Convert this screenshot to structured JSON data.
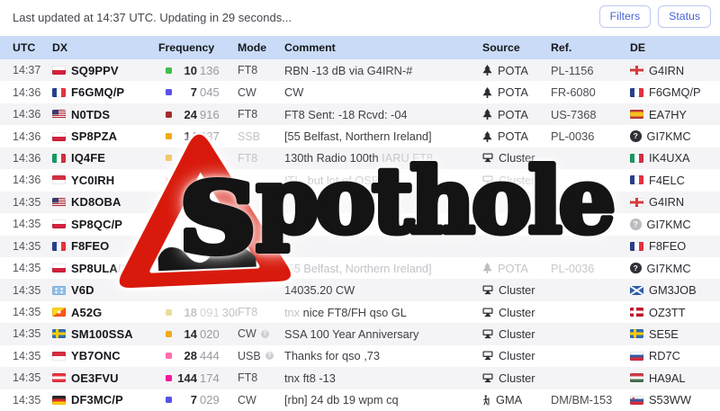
{
  "topbar": {
    "status_text": "Last updated at 14:37 UTC. Updating in 29 seconds...",
    "filters_label": "Filters",
    "status_label": "Status"
  },
  "table": {
    "columns": [
      "UTC",
      "DX",
      "Frequency",
      "Mode",
      "Comment",
      "Source",
      "Ref.",
      "DE"
    ],
    "rows": [
      {
        "utc": "14:37",
        "dx": {
          "flag": "pl",
          "call": "SQ9PPV",
          "suffix": "",
          "suffix_muted": false
        },
        "freq": {
          "band": "#3fbf4a",
          "mhz": "10",
          "khz": "136",
          "extra": "",
          "muted": false
        },
        "mode": {
          "label": "FT8",
          "muted": false,
          "badge": false
        },
        "comment": {
          "pre": "",
          "text": "RBN -13 dB via G4IRN-#",
          "tail": ""
        },
        "source": {
          "icon": "pota-tree",
          "label": "POTA",
          "muted": false
        },
        "ref": {
          "text": "PL-1156",
          "muted": false
        },
        "de": {
          "flag": "gb-eng",
          "call": "G4IRN"
        }
      },
      {
        "utc": "14:36",
        "dx": {
          "flag": "fr",
          "call": "F6GMQ/P",
          "suffix": "",
          "suffix_muted": false
        },
        "freq": {
          "band": "#5a52e8",
          "mhz": "7",
          "khz": "045",
          "extra": "",
          "muted": false
        },
        "mode": {
          "label": "CW",
          "muted": false,
          "badge": false
        },
        "comment": {
          "pre": "",
          "text": "CW",
          "tail": ""
        },
        "source": {
          "icon": "pota-tree",
          "label": "POTA",
          "muted": false
        },
        "ref": {
          "text": "FR-6080",
          "muted": false
        },
        "de": {
          "flag": "fr",
          "call": "F6GMQ/P"
        }
      },
      {
        "utc": "14:36",
        "dx": {
          "flag": "us",
          "call": "N0TDS",
          "suffix": "",
          "suffix_muted": false
        },
        "freq": {
          "band": "#a62c2c",
          "mhz": "24",
          "khz": "916",
          "extra": "",
          "muted": false
        },
        "mode": {
          "label": "FT8",
          "muted": false,
          "badge": false
        },
        "comment": {
          "pre": "",
          "text": "FT8 Sent: -18 Rcvd: -04",
          "tail": ""
        },
        "source": {
          "icon": "pota-tree",
          "label": "POTA",
          "muted": false
        },
        "ref": {
          "text": "US-7368",
          "muted": false
        },
        "de": {
          "flag": "es",
          "call": "EA7HY"
        }
      },
      {
        "utc": "14:36",
        "dx": {
          "flag": "pl",
          "call": "SP8PZA",
          "suffix": "",
          "suffix_muted": false
        },
        "freq": {
          "band": "#f0ab18",
          "mhz": "14",
          "khz": "337",
          "extra": "",
          "muted": false
        },
        "mode": {
          "label": "SSB",
          "muted": true,
          "badge": false
        },
        "comment": {
          "pre": "",
          "text": "[55 Belfast, Northern Ireland]",
          "tail": ""
        },
        "source": {
          "icon": "pota-tree",
          "label": "POTA",
          "muted": false
        },
        "ref": {
          "text": "PL-0036",
          "muted": false
        },
        "de": {
          "flag": "q",
          "call": "GI7KMC"
        }
      },
      {
        "utc": "14:36",
        "dx": {
          "flag": "it",
          "call": "IQ4FE",
          "suffix": "",
          "suffix_muted": false
        },
        "freq": {
          "band": "#edc25a",
          "mhz": "14",
          "khz": "",
          "extra": "",
          "muted": true
        },
        "mode": {
          "label": "FT8",
          "muted": true,
          "badge": false
        },
        "comment": {
          "pre": "",
          "text": "130th Radio 100th",
          "tail": " IARU FT8"
        },
        "source": {
          "icon": "cluster-monitor",
          "label": "Cluster",
          "muted": false
        },
        "ref": {
          "text": "",
          "muted": false
        },
        "de": {
          "flag": "it",
          "call": "IK4UXA"
        }
      },
      {
        "utc": "14:36",
        "dx": {
          "flag": "id",
          "call": "YC0IRH",
          "suffix": "",
          "suffix_muted": false
        },
        "freq": {
          "band": "#f2c3c6",
          "mhz": "",
          "khz": "",
          "extra": "",
          "muted": true
        },
        "mode": {
          "label": "",
          "muted": true,
          "badge": false
        },
        "comment": {
          "pre": "ITL, but lot of QSB...",
          "text": "",
          "tail": ""
        },
        "source": {
          "icon": "cluster-monitor",
          "label": "Cluster",
          "muted": true
        },
        "ref": {
          "text": "",
          "muted": false
        },
        "de": {
          "flag": "fr",
          "call": "F4ELC"
        }
      },
      {
        "utc": "14:35",
        "dx": {
          "flag": "us",
          "call": "KD8OBA",
          "suffix": "",
          "suffix_muted": false
        },
        "freq": {
          "band": "",
          "mhz": "",
          "khz": "",
          "extra": "",
          "muted": false
        },
        "mode": {
          "label": "",
          "muted": false,
          "badge": false
        },
        "comment": {
          "pre": "",
          "text": "",
          "tail": ""
        },
        "source": {
          "icon": "",
          "label": "",
          "muted": false
        },
        "ref": {
          "text": "",
          "muted": false
        },
        "de": {
          "flag": "gb-eng",
          "call": "G4IRN"
        }
      },
      {
        "utc": "14:35",
        "dx": {
          "flag": "pl",
          "call": "SP8QC/P",
          "suffix": "",
          "suffix_muted": false
        },
        "freq": {
          "band": "",
          "mhz": "",
          "khz": "",
          "extra": "",
          "muted": false
        },
        "mode": {
          "label": "",
          "muted": false,
          "badge": false
        },
        "comment": {
          "pre": "",
          "text": "",
          "tail": ""
        },
        "source": {
          "icon": "",
          "label": "",
          "muted": false
        },
        "ref": {
          "text": "",
          "muted": false
        },
        "de": {
          "flag": "q-gray",
          "call": "GI7KMC"
        }
      },
      {
        "utc": "14:35",
        "dx": {
          "flag": "fr",
          "call": "F8FEO",
          "suffix": "",
          "suffix_muted": false
        },
        "freq": {
          "band": "",
          "mhz": "",
          "khz": "",
          "extra": "",
          "muted": false
        },
        "mode": {
          "label": "",
          "muted": false,
          "badge": false
        },
        "comment": {
          "pre": "",
          "text": "",
          "tail": ""
        },
        "source": {
          "icon": "",
          "label": "",
          "muted": false
        },
        "ref": {
          "text": "",
          "muted": false
        },
        "de": {
          "flag": "fr",
          "call": "F8FEO"
        }
      },
      {
        "utc": "14:35",
        "dx": {
          "flag": "pl",
          "call": "SP8ULA",
          "suffix": "/P",
          "suffix_muted": true
        },
        "freq": {
          "band": "",
          "mhz": "",
          "khz": "",
          "extra": "",
          "muted": true
        },
        "mode": {
          "label": "",
          "muted": true,
          "badge": false
        },
        "comment": {
          "pre": "[55 Belfast, Northern Ireland]",
          "text": "",
          "tail": ""
        },
        "source": {
          "icon": "pota-tree",
          "label": "POTA",
          "muted": true
        },
        "ref": {
          "text": "PL-0036",
          "muted": true
        },
        "de": {
          "flag": "q",
          "call": "GI7KMC"
        }
      },
      {
        "utc": "14:35",
        "dx": {
          "flag": "fm",
          "call": "V6D",
          "suffix": "",
          "suffix_muted": false
        },
        "freq": {
          "band": "",
          "mhz": "",
          "khz": "",
          "extra": "",
          "muted": false
        },
        "mode": {
          "label": "",
          "muted": false,
          "badge": false
        },
        "comment": {
          "pre": "",
          "text": "14035.20 CW",
          "tail": ""
        },
        "source": {
          "icon": "cluster-monitor",
          "label": "Cluster",
          "muted": false
        },
        "ref": {
          "text": "",
          "muted": false
        },
        "de": {
          "flag": "sct",
          "call": "GM3JOB"
        }
      },
      {
        "utc": "14:35",
        "dx": {
          "flag": "bt",
          "call": "A52G",
          "suffix": "",
          "suffix_muted": false
        },
        "freq": {
          "band": "#e9dc9c",
          "mhz": "18",
          "khz": "091",
          "extra": "300",
          "muted": true
        },
        "mode": {
          "label": "FT8",
          "muted": true,
          "badge": false
        },
        "comment": {
          "pre": "tnx ",
          "text": "nice FT8/FH qso GL",
          "tail": ""
        },
        "source": {
          "icon": "cluster-monitor",
          "label": "Cluster",
          "muted": false
        },
        "ref": {
          "text": "",
          "muted": false
        },
        "de": {
          "flag": "dk",
          "call": "OZ3TT"
        }
      },
      {
        "utc": "14:35",
        "dx": {
          "flag": "se",
          "call": "SM100SSA",
          "suffix": "",
          "suffix_muted": false
        },
        "freq": {
          "band": "#f0ab18",
          "mhz": "14",
          "khz": "020",
          "extra": "",
          "muted": false
        },
        "mode": {
          "label": "CW",
          "muted": false,
          "badge": true
        },
        "comment": {
          "pre": "",
          "text": "SSA 100 Year Anniversary",
          "tail": ""
        },
        "source": {
          "icon": "cluster-monitor",
          "label": "Cluster",
          "muted": false
        },
        "ref": {
          "text": "",
          "muted": false
        },
        "de": {
          "flag": "se",
          "call": "SE5E"
        }
      },
      {
        "utc": "14:35",
        "dx": {
          "flag": "id",
          "call": "YB7ONC",
          "suffix": "",
          "suffix_muted": false
        },
        "freq": {
          "band": "#ff6fae",
          "mhz": "28",
          "khz": "444",
          "extra": "",
          "muted": false
        },
        "mode": {
          "label": "USB",
          "muted": false,
          "badge": true
        },
        "comment": {
          "pre": "",
          "text": "Thanks for qso ,73",
          "tail": ""
        },
        "source": {
          "icon": "cluster-monitor",
          "label": "Cluster",
          "muted": false
        },
        "ref": {
          "text": "",
          "muted": false
        },
        "de": {
          "flag": "ru",
          "call": "RD7C"
        }
      },
      {
        "utc": "14:35",
        "dx": {
          "flag": "at",
          "call": "OE3FVU",
          "suffix": "",
          "suffix_muted": false
        },
        "freq": {
          "band": "#f3179b",
          "mhz": "144",
          "khz": "174",
          "extra": "",
          "muted": false
        },
        "mode": {
          "label": "FT8",
          "muted": false,
          "badge": false
        },
        "comment": {
          "pre": "",
          "text": "tnx ft8 -13",
          "tail": ""
        },
        "source": {
          "icon": "cluster-monitor",
          "label": "Cluster",
          "muted": false
        },
        "ref": {
          "text": "",
          "muted": false
        },
        "de": {
          "flag": "hu",
          "call": "HA9AL"
        }
      },
      {
        "utc": "14:35",
        "dx": {
          "flag": "de",
          "call": "DF3MC/P",
          "suffix": "",
          "suffix_muted": false
        },
        "freq": {
          "band": "#5a52e8",
          "mhz": "7",
          "khz": "029",
          "extra": "",
          "muted": false
        },
        "mode": {
          "label": "CW",
          "muted": false,
          "badge": false
        },
        "comment": {
          "pre": "",
          "text": "[rbn] 24 db 19 wpm cq",
          "tail": ""
        },
        "source": {
          "icon": "gma-hiker",
          "label": "GMA",
          "muted": false
        },
        "ref": {
          "text": "DM/BM-153",
          "muted": false
        },
        "de": {
          "flag": "si",
          "call": "S53WW"
        }
      }
    ]
  },
  "watermark": {
    "text": "spothole",
    "sign": "pothole-warning-triangle",
    "colors": {
      "sign_red": "#d8190b",
      "text_black": "#141414"
    }
  },
  "colors": {
    "header_bg": "#c9dbf7",
    "row_alt_bg": "#f4f4f6",
    "accent_blue": "#4762d6",
    "muted_text": "#c4c4c9"
  }
}
